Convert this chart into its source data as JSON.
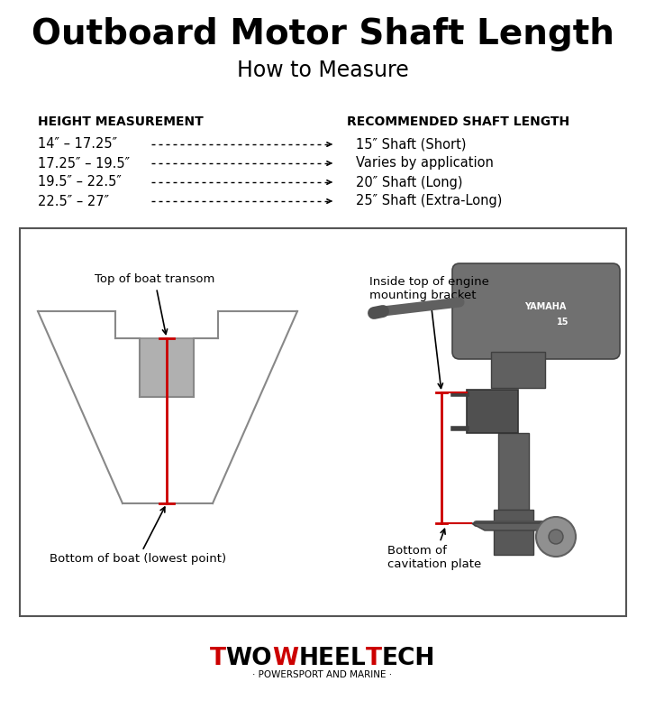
{
  "title": "Outboard Motor Shaft Length",
  "subtitle": "How to Measure",
  "col1_header": "HEIGHT MEASUREMENT",
  "col2_header": "RECOMMENDED SHAFT LENGTH",
  "rows": [
    {
      "height": "14″ – 17.25″",
      "shaft": "15″ Shaft (Short)"
    },
    {
      "height": "17.25″ – 19.5″",
      "shaft": "Varies by application"
    },
    {
      "height": "19.5″ – 22.5″",
      "shaft": "20″ Shaft (Long)"
    },
    {
      "height": "22.5″ – 27″",
      "shaft": "25″ Shaft (Extra-Long)"
    }
  ],
  "label_transom": "Top of boat transom",
  "label_bottom": "Bottom of boat (lowest point)",
  "label_bracket": "Inside top of engine\nmounting bracket",
  "label_cavitation": "Bottom of\ncavitation plate",
  "brand_sub": "· POWERSPORT AND MARINE ·",
  "bg_color": "#ffffff",
  "box_edge_color": "#555555",
  "red_color": "#cc0000",
  "hull_color": "#888888",
  "transom_fill": "#b0b0b0",
  "motor_dark": "#666666",
  "motor_mid": "#888888",
  "motor_light": "#aaaaaa"
}
